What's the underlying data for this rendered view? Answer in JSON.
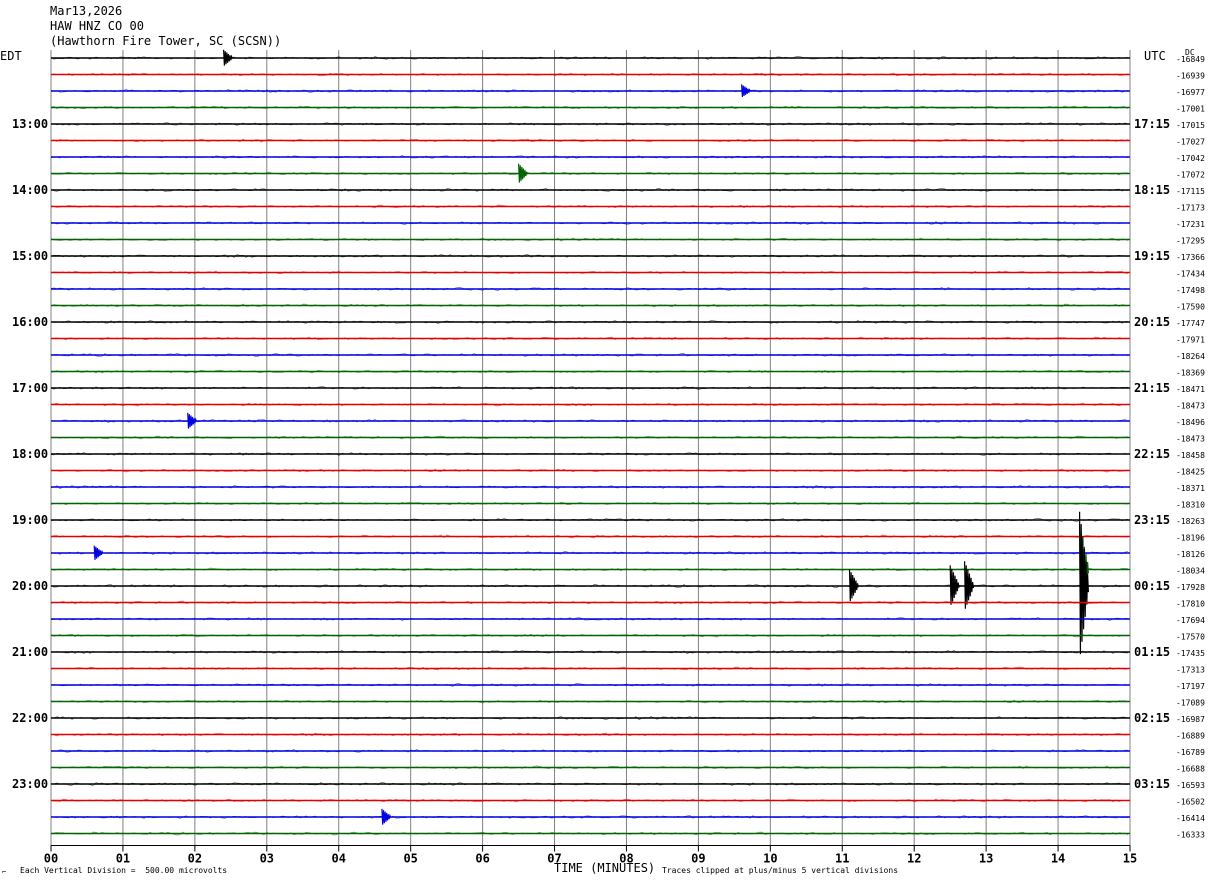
{
  "header": {
    "date": "Mar13,2026",
    "channel": "HAW HNZ CO 00",
    "station": "(Hawthorn Fire Tower, SC (SCSN))"
  },
  "left_axis_label": "EDT",
  "right_axis_label": "UTC",
  "dc_label": "DC",
  "footer": {
    "scale_note": "Each Vertical Division =  500.00 microvolts",
    "xlabel": "TIME (MINUTES)",
    "clip_note": "Traces clipped at plus/minus 5 vertical divisions"
  },
  "colors": {
    "trace_cycle": [
      "#000000",
      "#e00000",
      "#0000e0",
      "#006400"
    ],
    "grid": "#808080"
  },
  "chart_data": {
    "type": "line",
    "title": "HAW HNZ CO 00",
    "xlabel": "TIME (MINUTES)",
    "xlim": [
      0,
      15
    ],
    "x_ticks": [
      "00",
      "01",
      "02",
      "03",
      "04",
      "05",
      "06",
      "07",
      "08",
      "09",
      "10",
      "11",
      "12",
      "13",
      "14",
      "15"
    ],
    "rows": 48,
    "row_minutes": 15,
    "edt_labels": [
      "13:00",
      "14:00",
      "15:00",
      "16:00",
      "17:00",
      "18:00",
      "19:00",
      "20:00",
      "21:00",
      "22:00",
      "23:00"
    ],
    "utc_labels": [
      "17:15",
      "18:15",
      "19:15",
      "20:15",
      "21:15",
      "22:15",
      "23:15",
      "00:15",
      "01:15",
      "02:15",
      "03:15"
    ],
    "hour_label_first_row": 4,
    "dc_offsets": [
      -16849,
      -16939,
      -16977,
      -17001,
      -17015,
      -17027,
      -17042,
      -17072,
      -17115,
      -17173,
      -17231,
      -17295,
      -17366,
      -17434,
      -17498,
      -17590,
      -17747,
      -17971,
      -18264,
      -18369,
      -18471,
      -18473,
      -18496,
      -18473,
      -18458,
      -18425,
      -18371,
      -18310,
      -18263,
      -18196,
      -18126,
      -18034,
      -17928,
      -17810,
      -17694,
      -17570,
      -17435,
      -17313,
      -17197,
      -17089,
      -16987,
      -16889,
      -16789,
      -16688,
      -16593,
      -16502,
      -16414,
      -16333
    ],
    "events": [
      {
        "row": 0,
        "minute": 2.4,
        "amp": 1.0
      },
      {
        "row": 2,
        "minute": 9.6,
        "amp": 0.8
      },
      {
        "row": 7,
        "minute": 6.5,
        "amp": 1.2
      },
      {
        "row": 22,
        "minute": 1.9,
        "amp": 1.0
      },
      {
        "row": 30,
        "minute": 0.6,
        "amp": 0.9
      },
      {
        "row": 31,
        "minute": 14.3,
        "amp": 5.5
      },
      {
        "row": 32,
        "minute": 11.1,
        "amp": 2.0
      },
      {
        "row": 32,
        "minute": 12.5,
        "amp": 2.5
      },
      {
        "row": 32,
        "minute": 12.7,
        "amp": 3.0
      },
      {
        "row": 32,
        "minute": 14.3,
        "amp": 9.0
      },
      {
        "row": 46,
        "minute": 4.6,
        "amp": 1.0
      }
    ]
  }
}
